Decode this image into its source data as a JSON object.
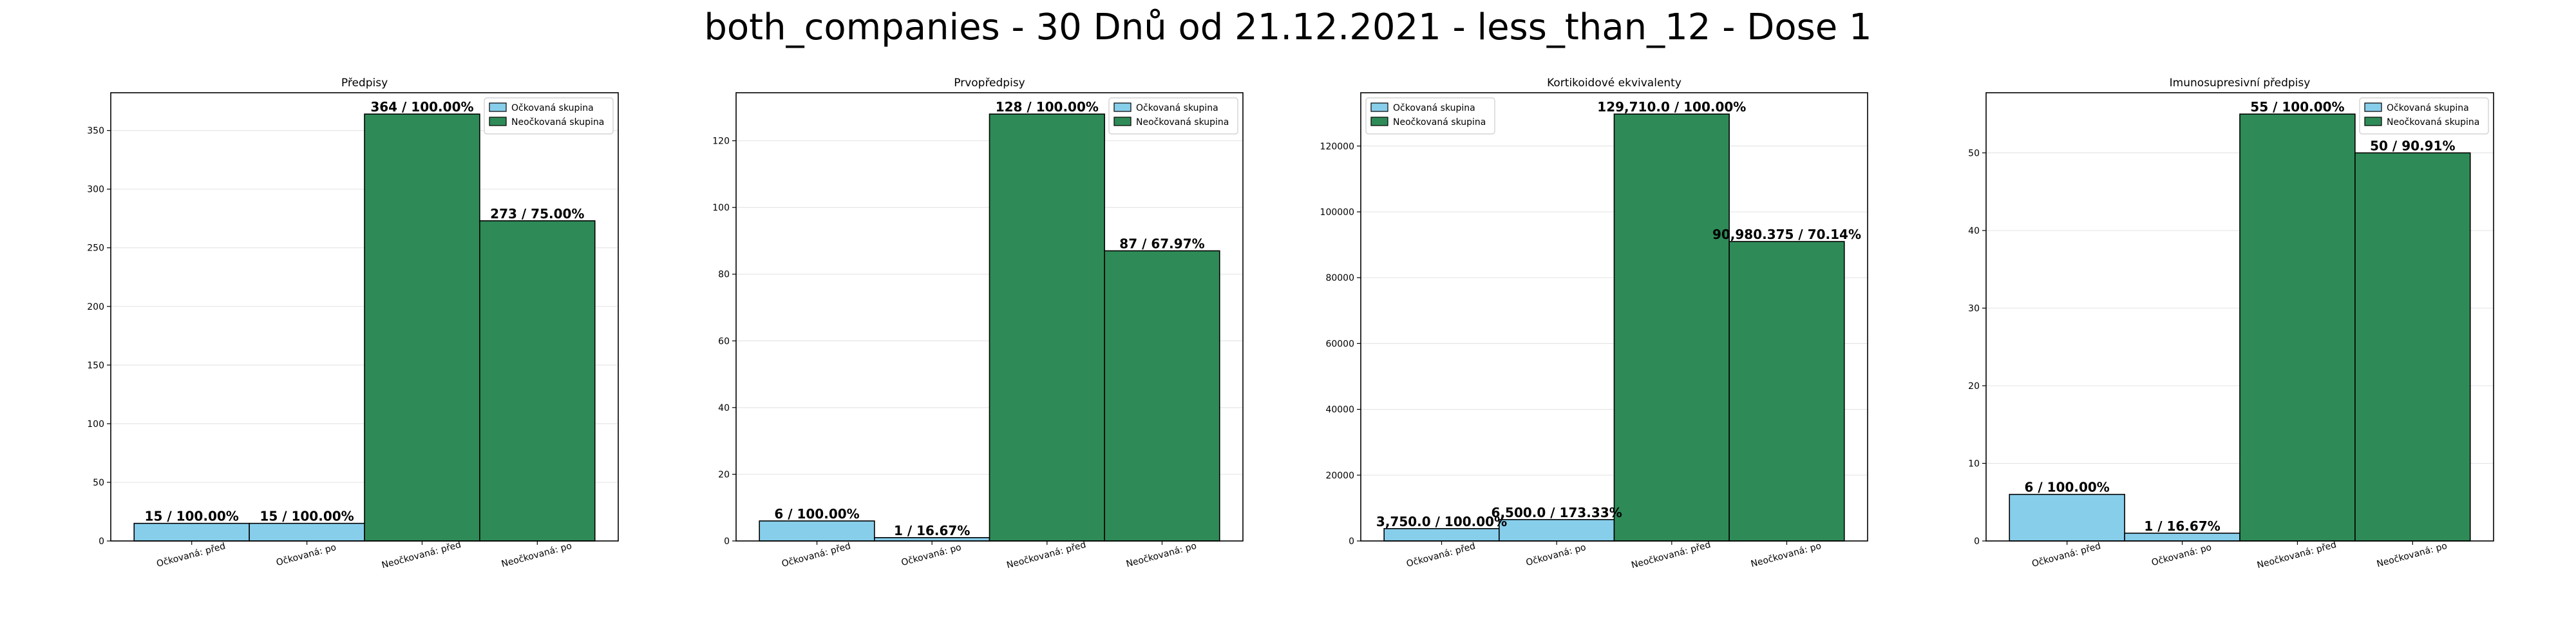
{
  "figure_title": "both_companies - 30 Dnů od 21.12.2021 - less_than_12 - Dose 1",
  "colors": {
    "vaccinated": "#87ceeb",
    "unvaccinated": "#2e8b57",
    "edge": "#000000",
    "grid": "#e6e6e6"
  },
  "chart_data": [
    {
      "type": "bar",
      "title": "Předpisy",
      "categories": [
        "Očkovaná: před",
        "Očkovaná: po",
        "Neočkovaná: před",
        "Neočkovaná: po"
      ],
      "values": [
        15,
        15,
        364,
        273
      ],
      "value_labels": [
        "15 / 100.00%",
        "15 / 100.00%",
        "364 / 100.00%",
        "273 / 75.00%"
      ],
      "groups": [
        "vaccinated",
        "vaccinated",
        "unvaccinated",
        "unvaccinated"
      ],
      "ylim": [
        0,
        382.2
      ],
      "yticks": [
        0,
        50,
        100,
        150,
        200,
        250,
        300,
        350
      ],
      "legend": {
        "position": "upper right",
        "entries": [
          "Očkovaná skupina",
          "Neočkovaná skupina"
        ]
      }
    },
    {
      "type": "bar",
      "title": "Prvopředpisy",
      "categories": [
        "Očkovaná: před",
        "Očkovaná: po",
        "Neočkovaná: před",
        "Neočkovaná: po"
      ],
      "values": [
        6,
        1,
        128,
        87
      ],
      "value_labels": [
        "6 / 100.00%",
        "1 / 16.67%",
        "128 / 100.00%",
        "87 / 67.97%"
      ],
      "groups": [
        "vaccinated",
        "vaccinated",
        "unvaccinated",
        "unvaccinated"
      ],
      "ylim": [
        0,
        134.4
      ],
      "yticks": [
        0,
        20,
        40,
        60,
        80,
        100,
        120
      ],
      "legend": {
        "position": "upper right",
        "entries": [
          "Očkovaná skupina",
          "Neočkovaná skupina"
        ]
      }
    },
    {
      "type": "bar",
      "title": "Kortikoidové ekvivalenty",
      "categories": [
        "Očkovaná: před",
        "Očkovaná: po",
        "Neočkovaná: před",
        "Neočkovaná: po"
      ],
      "values": [
        3750.0,
        6500.0,
        129710.0,
        90980.375
      ],
      "value_labels": [
        "3,750.0 / 100.00%",
        "6,500.0 / 173.33%",
        "129,710.0 / 100.00%",
        "90,980.375 / 70.14%"
      ],
      "groups": [
        "vaccinated",
        "vaccinated",
        "unvaccinated",
        "unvaccinated"
      ],
      "ylim": [
        0,
        136195.5
      ],
      "yticks": [
        0,
        20000,
        40000,
        60000,
        80000,
        100000,
        120000
      ],
      "legend": {
        "position": "upper left",
        "entries": [
          "Očkovaná skupina",
          "Neočkovaná skupina"
        ]
      }
    },
    {
      "type": "bar",
      "title": "Imunosupresivní předpisy",
      "categories": [
        "Očkovaná: před",
        "Očkovaná: po",
        "Neočkovaná: před",
        "Neočkovaná: po"
      ],
      "values": [
        6,
        1,
        55,
        50
      ],
      "value_labels": [
        "6 / 100.00%",
        "1 / 16.67%",
        "55 / 100.00%",
        "50 / 90.91%"
      ],
      "groups": [
        "vaccinated",
        "vaccinated",
        "unvaccinated",
        "unvaccinated"
      ],
      "ylim": [
        0,
        57.75
      ],
      "yticks": [
        0,
        10,
        20,
        30,
        40,
        50
      ],
      "legend": {
        "position": "upper right",
        "entries": [
          "Očkovaná skupina",
          "Neočkovaná skupina"
        ]
      }
    }
  ]
}
